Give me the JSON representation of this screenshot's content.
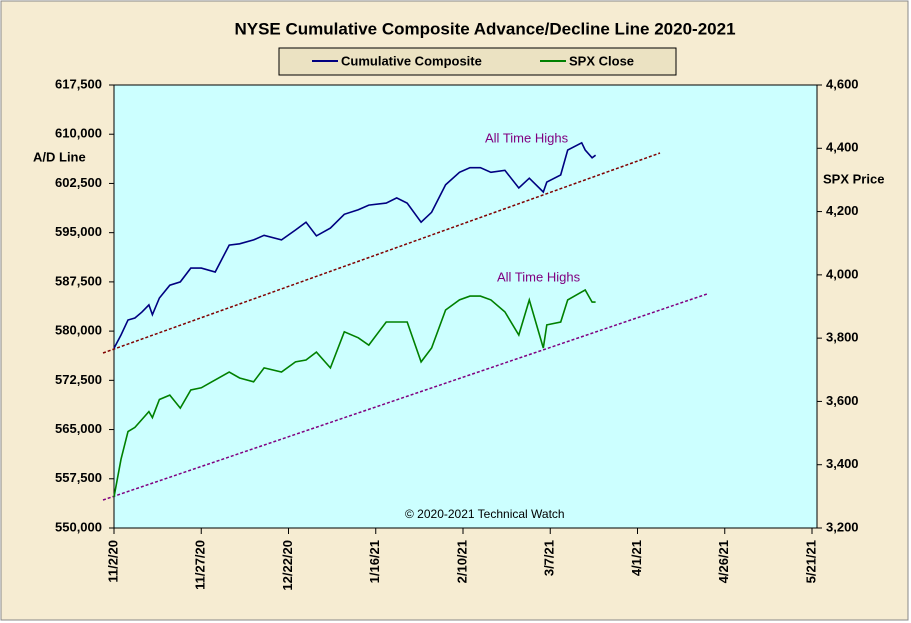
{
  "chart_data": {
    "type": "line",
    "title": "NYSE Cumulative  Composite Advance/Decline  Line 2020-2021",
    "ylabel": "A/D Line",
    "y2label": "SPX Price",
    "annotations": [
      "All Time Highs",
      "All Time Highs",
      "© 2020-2021  Technical Watch"
    ],
    "x": [
      "2020-11-02",
      "2020-11-04",
      "2020-11-06",
      "2020-11-08",
      "2020-11-10",
      "2020-11-12",
      "2020-11-13",
      "2020-11-15",
      "2020-11-18",
      "2020-11-21",
      "2020-11-24",
      "2020-11-27",
      "2020-12-01",
      "2020-12-05",
      "2020-12-08",
      "2020-12-12",
      "2020-12-15",
      "2020-12-20",
      "2020-12-24",
      "2020-12-27",
      "2020-12-30",
      "2021-01-03",
      "2021-01-07",
      "2021-01-11",
      "2021-01-14",
      "2021-01-19",
      "2021-01-22",
      "2021-01-25",
      "2021-01-29",
      "2021-02-01",
      "2021-02-05",
      "2021-02-09",
      "2021-02-12",
      "2021-02-15",
      "2021-02-18",
      "2021-02-22",
      "2021-02-26",
      "2021-03-01",
      "2021-03-05",
      "2021-03-06",
      "2021-03-10",
      "2021-03-12",
      "2021-03-16",
      "2021-03-17",
      "2021-03-19",
      "2021-03-20"
    ],
    "series": [
      {
        "name": "Cumulative Composite",
        "color": "#000080",
        "values": [
          577400,
          579400,
          581700,
          582000,
          582900,
          584000,
          582500,
          585050,
          587000,
          587500,
          589600,
          589600,
          589000,
          593100,
          593300,
          593900,
          594600,
          593900,
          595400,
          596600,
          594500,
          595700,
          597800,
          598500,
          599200,
          599500,
          600300,
          599500,
          596600,
          598100,
          602300,
          604200,
          604900,
          604900,
          604200,
          604500,
          601800,
          603300,
          601200,
          602700,
          603800,
          607600,
          608700,
          607600,
          606400,
          606800
        ]
      },
      {
        "name": "SPX Close",
        "color": "#008000",
        "axis": "y2",
        "values": [
          3298,
          3417,
          3505,
          3518,
          3543,
          3568,
          3549,
          3606,
          3620,
          3579,
          3636,
          3643,
          3668,
          3693,
          3674,
          3662,
          3706,
          3693,
          3725,
          3731,
          3756,
          3706,
          3820,
          3801,
          3778,
          3851,
          3851,
          3851,
          3725,
          3769,
          3889,
          3921,
          3933,
          3933,
          3921,
          3883,
          3810,
          3921,
          3769,
          3842,
          3851,
          3921,
          3946,
          3952,
          3914,
          3914
        ]
      }
    ],
    "xlim": [
      "2020-11-02",
      "2021-05-21"
    ],
    "xticks": [
      {
        "value": "2020-11-02",
        "label": "11/2/20"
      },
      {
        "value": "2020-11-27",
        "label": "11/27/20"
      },
      {
        "value": "2020-12-22",
        "label": "12/22/20"
      },
      {
        "value": "2021-01-16",
        "label": "1/16/21"
      },
      {
        "value": "2021-02-10",
        "label": "2/10/21"
      },
      {
        "value": "2021-03-07",
        "label": "3/7/21"
      },
      {
        "value": "2021-04-01",
        "label": "4/1/21"
      },
      {
        "value": "2021-04-26",
        "label": "4/26/21"
      },
      {
        "value": "2021-05-21",
        "label": "5/21/21"
      }
    ],
    "ylim": [
      550000,
      617500
    ],
    "yticks": [
      {
        "value": 550000,
        "label": "550,000"
      },
      {
        "value": 557500,
        "label": "557,500"
      },
      {
        "value": 565000,
        "label": "565,000"
      },
      {
        "value": 572500,
        "label": "572,500"
      },
      {
        "value": 580000,
        "label": "580,000"
      },
      {
        "value": 587500,
        "label": "587,500"
      },
      {
        "value": 595000,
        "label": "595,000"
      },
      {
        "value": 602500,
        "label": "602,500"
      },
      {
        "value": 610000,
        "label": "610,000"
      },
      {
        "value": 617500,
        "label": "617,500"
      }
    ],
    "y2lim": [
      3200,
      4600
    ],
    "y2ticks": [
      {
        "value": 3200,
        "label": "3,200"
      },
      {
        "value": 3400,
        "label": "3,400"
      },
      {
        "value": 3600,
        "label": "3,600"
      },
      {
        "value": 3800,
        "label": "3,800"
      },
      {
        "value": 4000,
        "label": "4,000"
      },
      {
        "value": 4200,
        "label": "4,200"
      },
      {
        "value": 4400,
        "label": "4,400"
      },
      {
        "value": 4600,
        "label": "4,600"
      }
    ],
    "grid": false,
    "legend": "top"
  }
}
